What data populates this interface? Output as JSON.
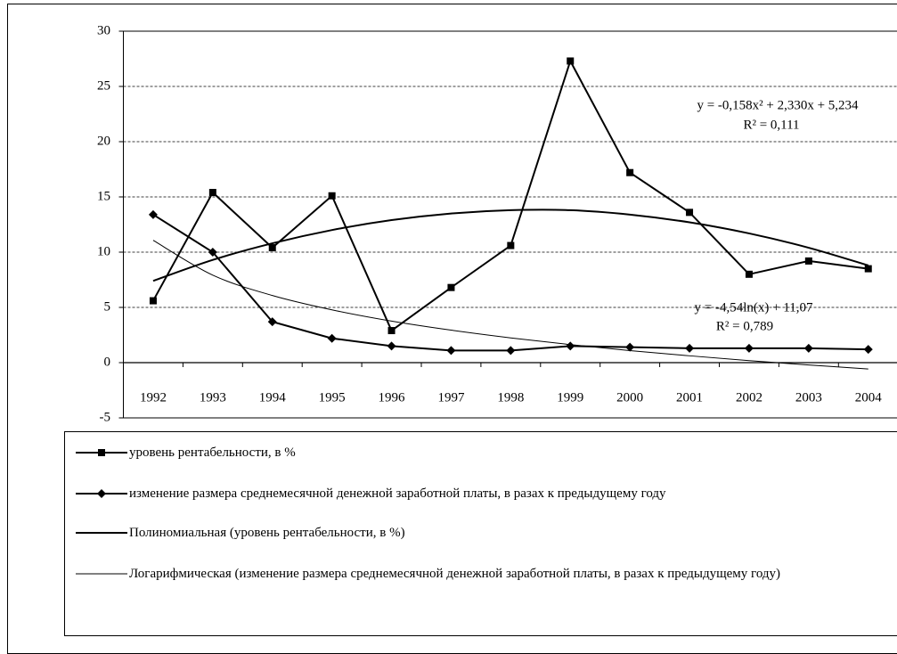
{
  "chart_data": {
    "type": "line",
    "categories": [
      "1992",
      "1993",
      "1994",
      "1995",
      "1996",
      "1997",
      "1998",
      "1999",
      "2000",
      "2001",
      "2002",
      "2003",
      "2004"
    ],
    "series": [
      {
        "name": "уровень рентабельности, в %",
        "color": "#000000",
        "marker": "square",
        "line_width": 2,
        "values": [
          5.6,
          15.4,
          10.4,
          15.1,
          2.9,
          6.8,
          10.6,
          27.3,
          17.2,
          13.6,
          8.0,
          9.2,
          8.5
        ]
      },
      {
        "name": "изменение размера среднемесячной денежной заработной платы, в разах к предыдущему году",
        "color": "#000000",
        "marker": "diamond",
        "line_width": 2,
        "values": [
          13.4,
          10.0,
          3.7,
          2.2,
          1.5,
          1.1,
          1.1,
          1.5,
          1.4,
          1.3,
          1.3,
          1.3,
          1.2
        ]
      },
      {
        "name": "Полиномиальная (уровень рентабельности, в %)",
        "color": "#000000",
        "marker": "none",
        "line_width": 2,
        "smooth": true,
        "values": [
          7.4,
          9.3,
          10.8,
          12.0,
          12.9,
          13.5,
          13.8,
          13.8,
          13.4,
          12.7,
          11.7,
          10.4,
          8.8
        ]
      },
      {
        "name": "Логарифмическая (изменение размера среднемесячной денежной заработной платы, в разах к предыдущему году)",
        "color": "#000000",
        "marker": "none",
        "line_width": 1,
        "smooth": true,
        "values": [
          11.07,
          7.92,
          6.08,
          4.78,
          3.76,
          2.94,
          2.24,
          1.63,
          1.09,
          0.62,
          0.18,
          -0.21,
          -0.57
        ]
      }
    ],
    "annotations": [
      "y = -0,158x² + 2,330x + 5,234",
      "R² = 0,111",
      "y = -4,54ln(x) + 11,07",
      "R² = 0,789"
    ],
    "ylim": [
      -5,
      30
    ],
    "yticks": [
      -5,
      0,
      5,
      10,
      15,
      20,
      25,
      30
    ],
    "grid": true,
    "legend": "bottom"
  }
}
